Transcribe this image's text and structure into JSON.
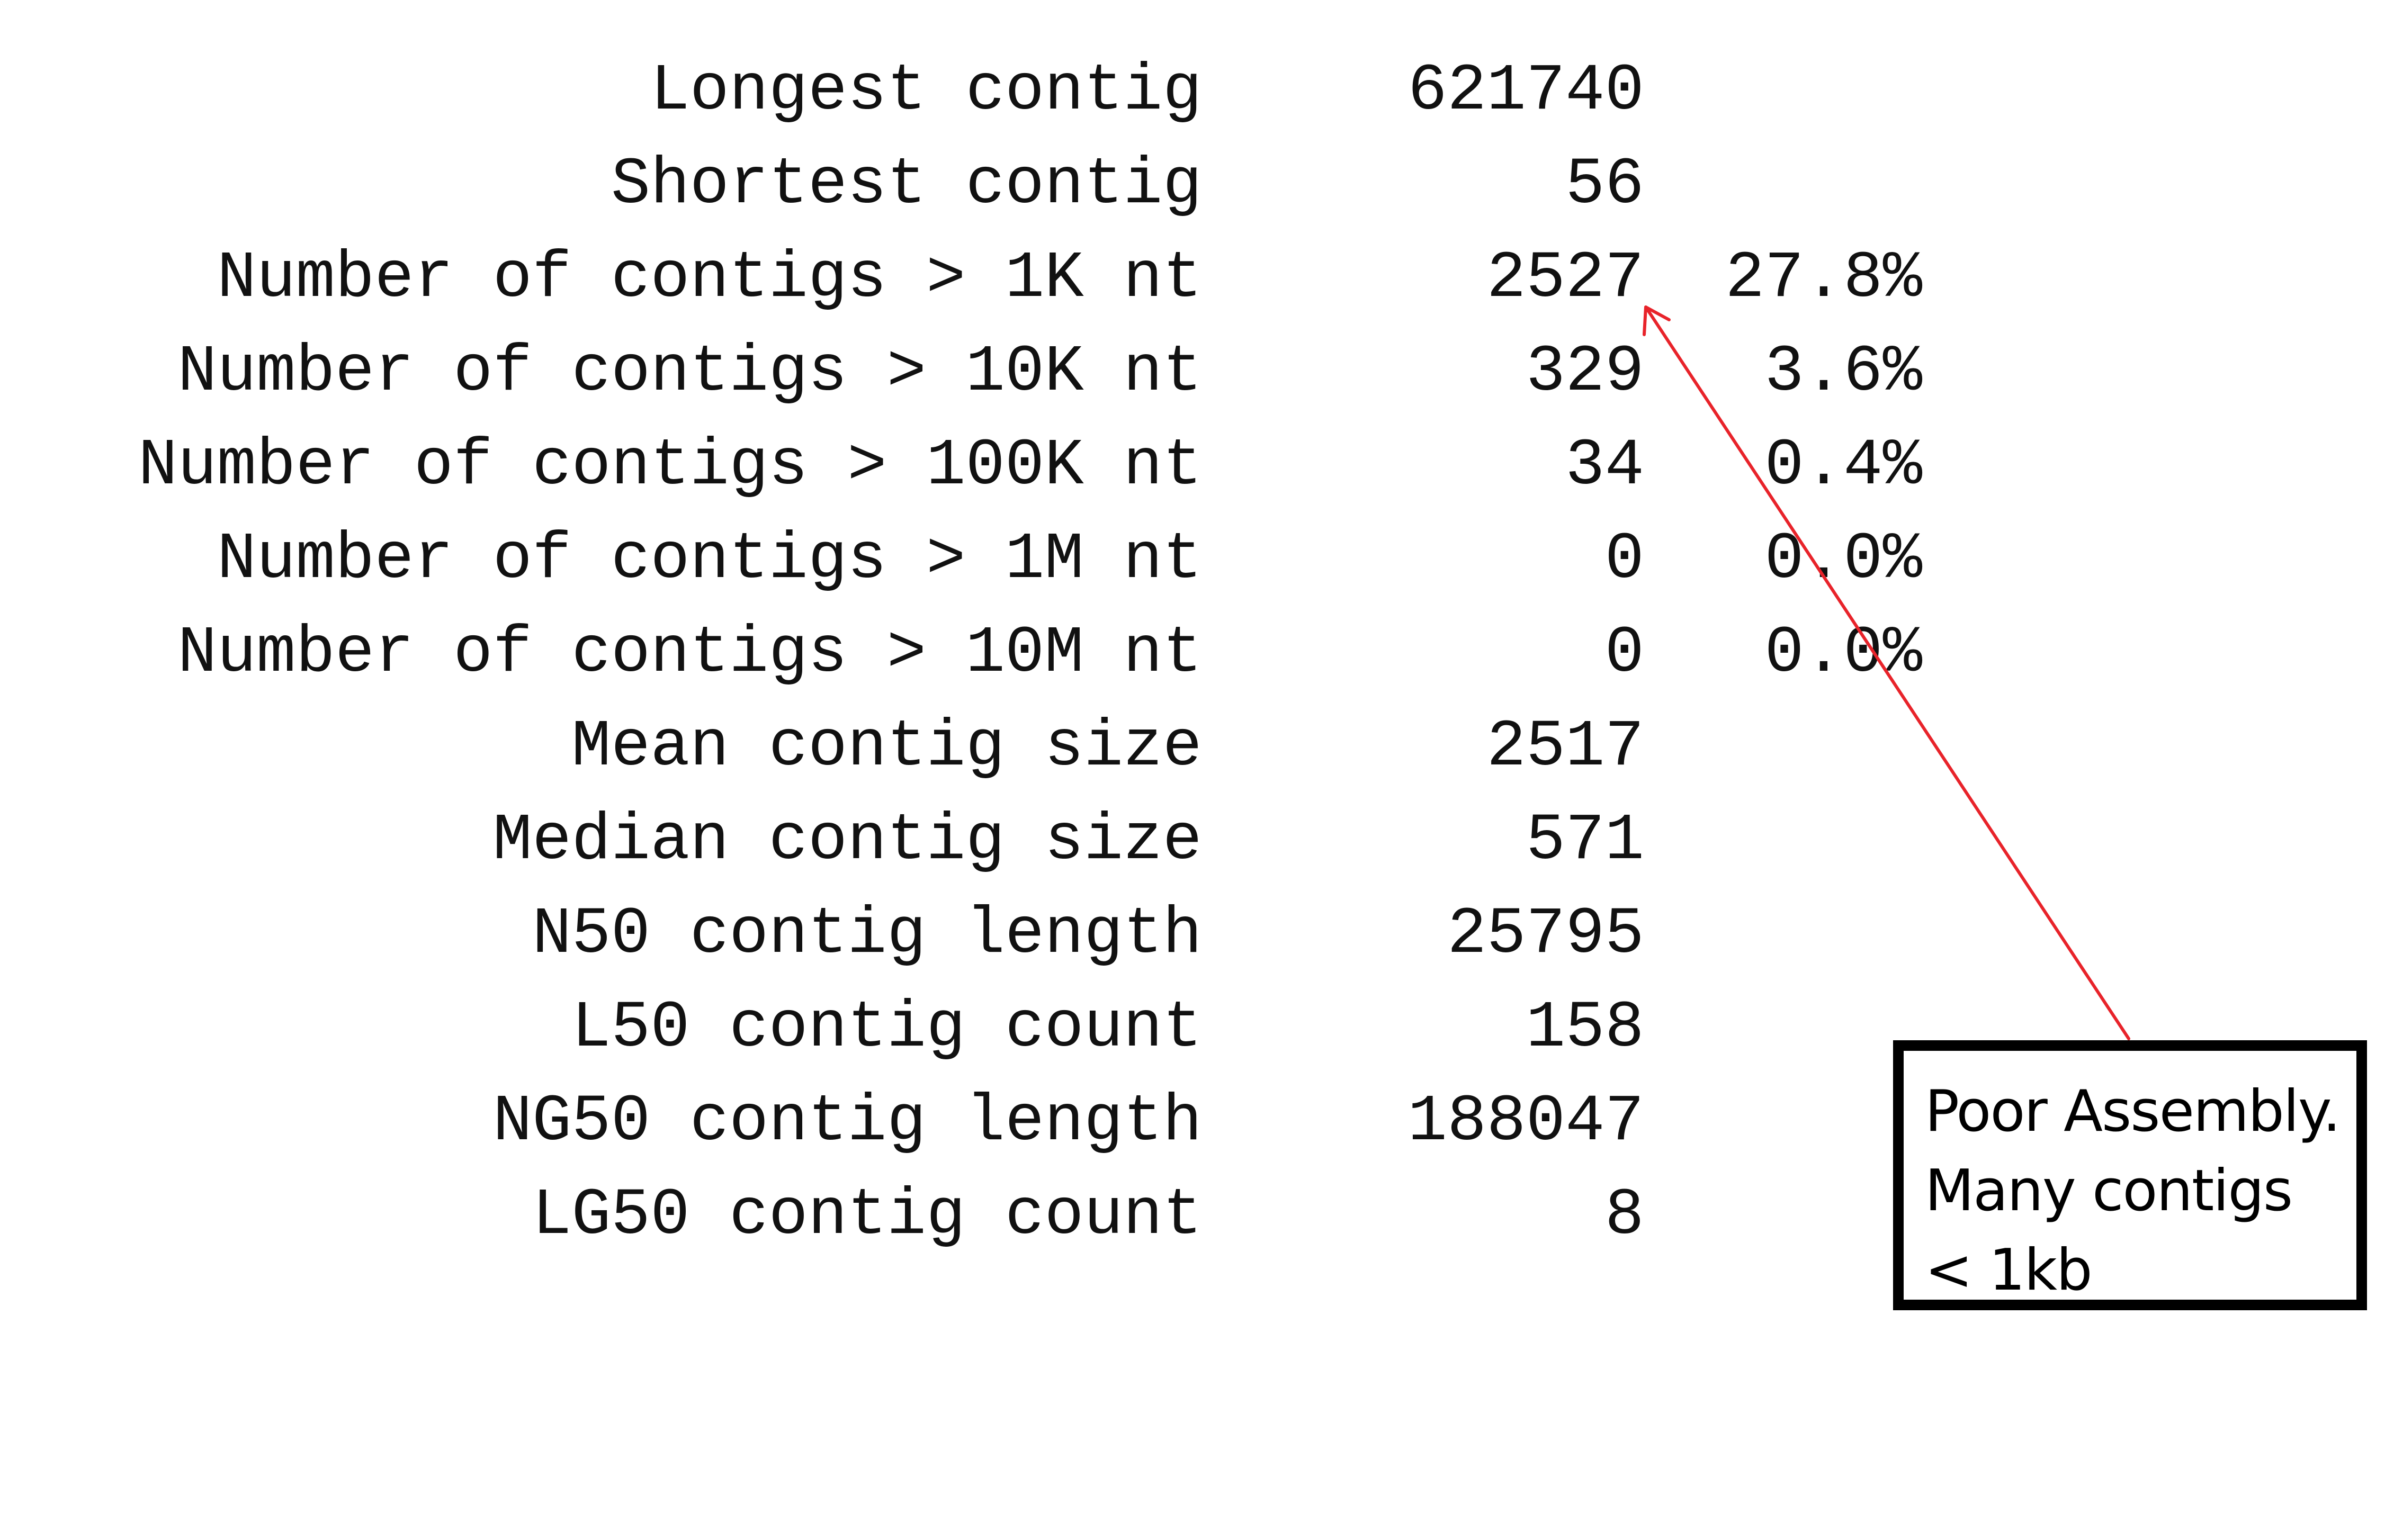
{
  "stats": {
    "rows": [
      {
        "label": "Longest contig",
        "value": "621740",
        "pct": ""
      },
      {
        "label": "Shortest contig",
        "value": "56",
        "pct": ""
      },
      {
        "label": "Number of contigs > 1K nt",
        "value": "2527",
        "pct": "27.8%"
      },
      {
        "label": "Number of contigs > 10K nt",
        "value": "329",
        "pct": "3.6%"
      },
      {
        "label": "Number of contigs > 100K nt",
        "value": "34",
        "pct": "0.4%"
      },
      {
        "label": "Number of contigs > 1M nt",
        "value": "0",
        "pct": "0.0%"
      },
      {
        "label": "Number of contigs > 10M nt",
        "value": "0",
        "pct": "0.0%"
      },
      {
        "label": "Mean contig size",
        "value": "2517",
        "pct": ""
      },
      {
        "label": "Median contig size",
        "value": "571",
        "pct": ""
      },
      {
        "label": "N50 contig length",
        "value": "25795",
        "pct": ""
      },
      {
        "label": "L50 contig count",
        "value": "158",
        "pct": ""
      },
      {
        "label": "NG50 contig length",
        "value": "188047",
        "pct": ""
      },
      {
        "label": "LG50 contig count",
        "value": "8",
        "pct": ""
      }
    ]
  },
  "callout": {
    "lines": [
      "Poor Assembly.",
      "Many contigs",
      "< 1kb"
    ],
    "border_color": "#000000"
  },
  "arrow": {
    "color": "#e8232a",
    "icon": "arrow-icon"
  }
}
